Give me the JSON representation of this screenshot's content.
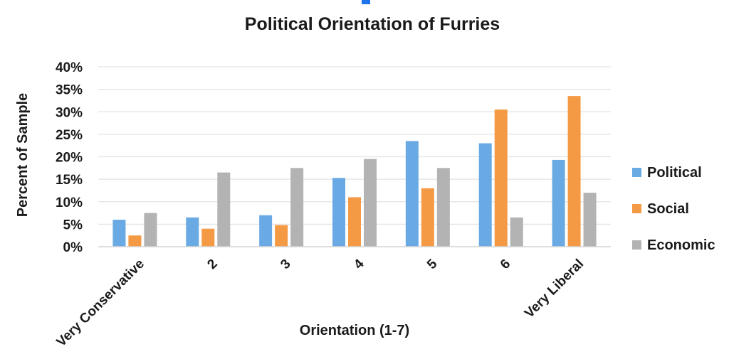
{
  "chart_data": {
    "type": "bar",
    "title": "Political Orientation of Furries",
    "xlabel": "Orientation (1-7)",
    "ylabel": "Percent of Sample",
    "categories": [
      "Very Conservative",
      "2",
      "3",
      "4",
      "5",
      "6",
      "Very Liberal"
    ],
    "series": [
      {
        "name": "Political",
        "color": "#6aaae4",
        "values": [
          6.0,
          6.5,
          7.0,
          15.3,
          23.5,
          23.0,
          19.3
        ]
      },
      {
        "name": "Social",
        "color": "#f49a45",
        "values": [
          2.5,
          4.0,
          4.8,
          11.0,
          13.0,
          30.5,
          33.5
        ]
      },
      {
        "name": "Economic",
        "color": "#b3b3b3",
        "values": [
          7.5,
          16.5,
          17.5,
          19.5,
          17.5,
          6.5,
          12.0
        ]
      }
    ],
    "y_ticks": [
      "0%",
      "5%",
      "10%",
      "15%",
      "20%",
      "25%",
      "30%",
      "35%",
      "40%"
    ],
    "ylim": [
      0,
      40
    ],
    "grid": true,
    "legend_position": "right",
    "accent_color": "#1e73e8"
  }
}
